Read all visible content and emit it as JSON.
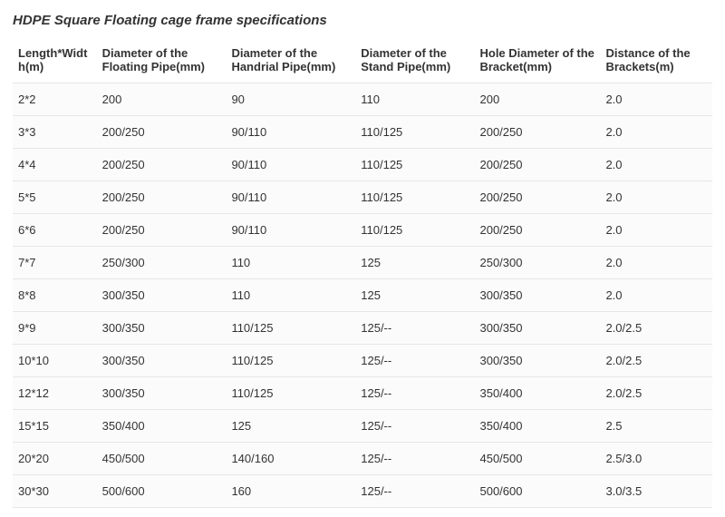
{
  "title": "HDPE Square Floating cage frame specifications",
  "table": {
    "columns": [
      "Length*Width(m)",
      "Diameter of the Floating Pipe(mm)",
      "Diameter of the Handrial Pipe(mm)",
      "Diameter of the Stand Pipe(mm)",
      "Hole Diameter of the Bracket(mm)",
      "Distance of the Brackets(m)"
    ],
    "rows": [
      [
        "2*2",
        "200",
        "90",
        "110",
        "200",
        "2.0"
      ],
      [
        "3*3",
        "200/250",
        "90/110",
        "110/125",
        "200/250",
        "2.0"
      ],
      [
        "4*4",
        "200/250",
        "90/110",
        "110/125",
        "200/250",
        "2.0"
      ],
      [
        "5*5",
        "200/250",
        "90/110",
        "110/125",
        "200/250",
        "2.0"
      ],
      [
        "6*6",
        "200/250",
        "90/110",
        "110/125",
        "200/250",
        "2.0"
      ],
      [
        "7*7",
        "250/300",
        "110",
        "125",
        "250/300",
        "2.0"
      ],
      [
        "8*8",
        "300/350",
        "110",
        "125",
        "300/350",
        "2.0"
      ],
      [
        "9*9",
        "300/350",
        "110/125",
        "125/--",
        "300/350",
        "2.0/2.5"
      ],
      [
        "10*10",
        "300/350",
        "110/125",
        "125/--",
        "300/350",
        "2.0/2.5"
      ],
      [
        "12*12",
        "300/350",
        "110/125",
        "125/--",
        "350/400",
        "2.0/2.5"
      ],
      [
        "15*15",
        "350/400",
        "125",
        "125/--",
        "350/400",
        "2.5"
      ],
      [
        "20*20",
        "450/500",
        "140/160",
        "125/--",
        "450/500",
        "2.5/3.0"
      ],
      [
        "30*30",
        "500/600",
        "160",
        "125/--",
        "500/600",
        "3.0/3.5"
      ]
    ],
    "col_widths_percent": [
      12,
      18.5,
      18.5,
      17,
      18,
      16
    ],
    "header_fontsize": 13,
    "cell_fontsize": 13,
    "title_fontsize": 15,
    "text_color": "#333333",
    "border_color": "#e6e6e6",
    "row_background": "#fbfbfb",
    "background_color": "#ffffff"
  }
}
